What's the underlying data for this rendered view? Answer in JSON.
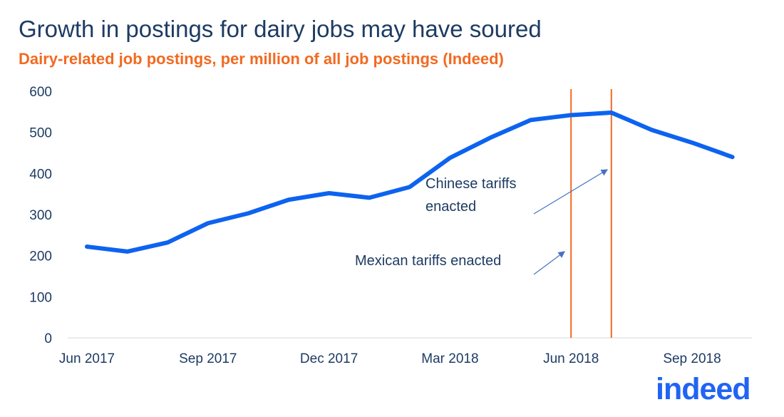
{
  "chart_data": {
    "type": "line",
    "title": "Growth in postings for dairy jobs may have soured",
    "subtitle": "Dairy-related job postings, per million of all job postings (Indeed)",
    "xlabel": "",
    "ylabel": "",
    "ylim": [
      0,
      600
    ],
    "yticks": [
      "0",
      "100",
      "200",
      "300",
      "400",
      "500",
      "600"
    ],
    "xtick_labels": [
      "Jun 2017",
      "Sep 2017",
      "Dec 2017",
      "Mar 2018",
      "Jun 2018",
      "Sep 2018"
    ],
    "x": [
      "2017-06",
      "2017-07",
      "2017-08",
      "2017-09",
      "2017-10",
      "2017-11",
      "2017-12",
      "2018-01",
      "2018-02",
      "2018-03",
      "2018-04",
      "2018-05",
      "2018-06",
      "2018-07",
      "2018-08",
      "2018-09",
      "2018-10"
    ],
    "series": [
      {
        "values": [
          222,
          210,
          232,
          279,
          303,
          336,
          352,
          341,
          367,
          438,
          487,
          530,
          542,
          548,
          506,
          475,
          440
        ],
        "color": "#0d63ef"
      }
    ],
    "grid": false,
    "vertical_lines": [
      {
        "x": "2018-06",
        "color": "#f26a21"
      },
      {
        "x": "2018-07",
        "color": "#f26a21"
      }
    ],
    "annotations": [
      {
        "lines": [
          "Chinese tariffs",
          "enacted"
        ],
        "points_to": "2018-07"
      },
      {
        "lines": [
          "Mexican tariffs enacted"
        ],
        "points_to": "2018-06"
      }
    ]
  },
  "logo": "indeed"
}
